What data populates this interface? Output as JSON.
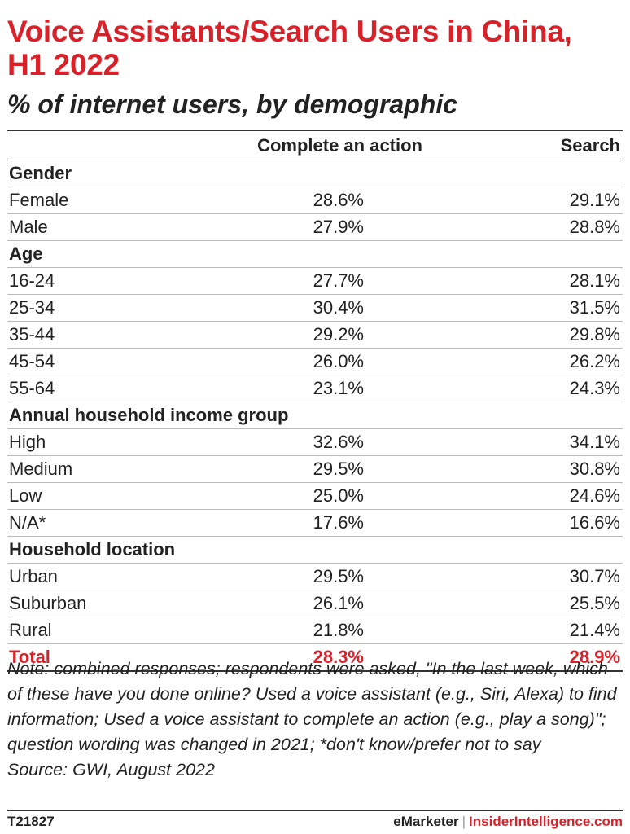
{
  "chart_data": {
    "type": "table",
    "title": "Voice Assistants/Search Users in China, H1 2022",
    "subtitle": "% of internet users, by demographic",
    "columns": [
      "Complete an action",
      "Search"
    ],
    "groups": [
      {
        "name": "Gender",
        "rows": [
          {
            "label": "Female",
            "values": [
              "28.6%",
              "29.1%"
            ]
          },
          {
            "label": "Male",
            "values": [
              "27.9%",
              "28.8%"
            ]
          }
        ]
      },
      {
        "name": "Age",
        "rows": [
          {
            "label": "16-24",
            "values": [
              "27.7%",
              "28.1%"
            ]
          },
          {
            "label": "25-34",
            "values": [
              "30.4%",
              "31.5%"
            ]
          },
          {
            "label": "35-44",
            "values": [
              "29.2%",
              "29.8%"
            ]
          },
          {
            "label": "45-54",
            "values": [
              "26.0%",
              "26.2%"
            ]
          },
          {
            "label": "55-64",
            "values": [
              "23.1%",
              "24.3%"
            ]
          }
        ]
      },
      {
        "name": "Annual household income group",
        "rows": [
          {
            "label": "High",
            "values": [
              "32.6%",
              "34.1%"
            ]
          },
          {
            "label": "Medium",
            "values": [
              "29.5%",
              "30.8%"
            ]
          },
          {
            "label": "Low",
            "values": [
              "25.0%",
              "24.6%"
            ]
          },
          {
            "label": "N/A*",
            "values": [
              "17.6%",
              "16.6%"
            ]
          }
        ]
      },
      {
        "name": "Household location",
        "rows": [
          {
            "label": "Urban",
            "values": [
              "29.5%",
              "30.7%"
            ]
          },
          {
            "label": "Suburban",
            "values": [
              "26.1%",
              "25.5%"
            ]
          },
          {
            "label": "Rural",
            "values": [
              "21.8%",
              "21.4%"
            ]
          }
        ]
      }
    ],
    "total": {
      "label": "Total",
      "values": [
        "28.3%",
        "28.9%"
      ]
    }
  },
  "note": "Note: combined responses; respondents were asked, \"In the last week, which of these have you done online? Used a voice assistant (e.g., Siri, Alexa) to find information; Used a voice assistant to complete an action (e.g., play a song)\"; question wording was changed in 2021; *don't know/prefer not to say",
  "source": "Source: GWI, August 2022",
  "footer": {
    "chart_id": "T21827",
    "brand_emarketer": "eMarketer",
    "brand_separator": "|",
    "brand_insider": "InsiderIntelligence.com"
  },
  "colors": {
    "accent": "#d8222a",
    "text": "#222222",
    "rule": "#333333"
  }
}
